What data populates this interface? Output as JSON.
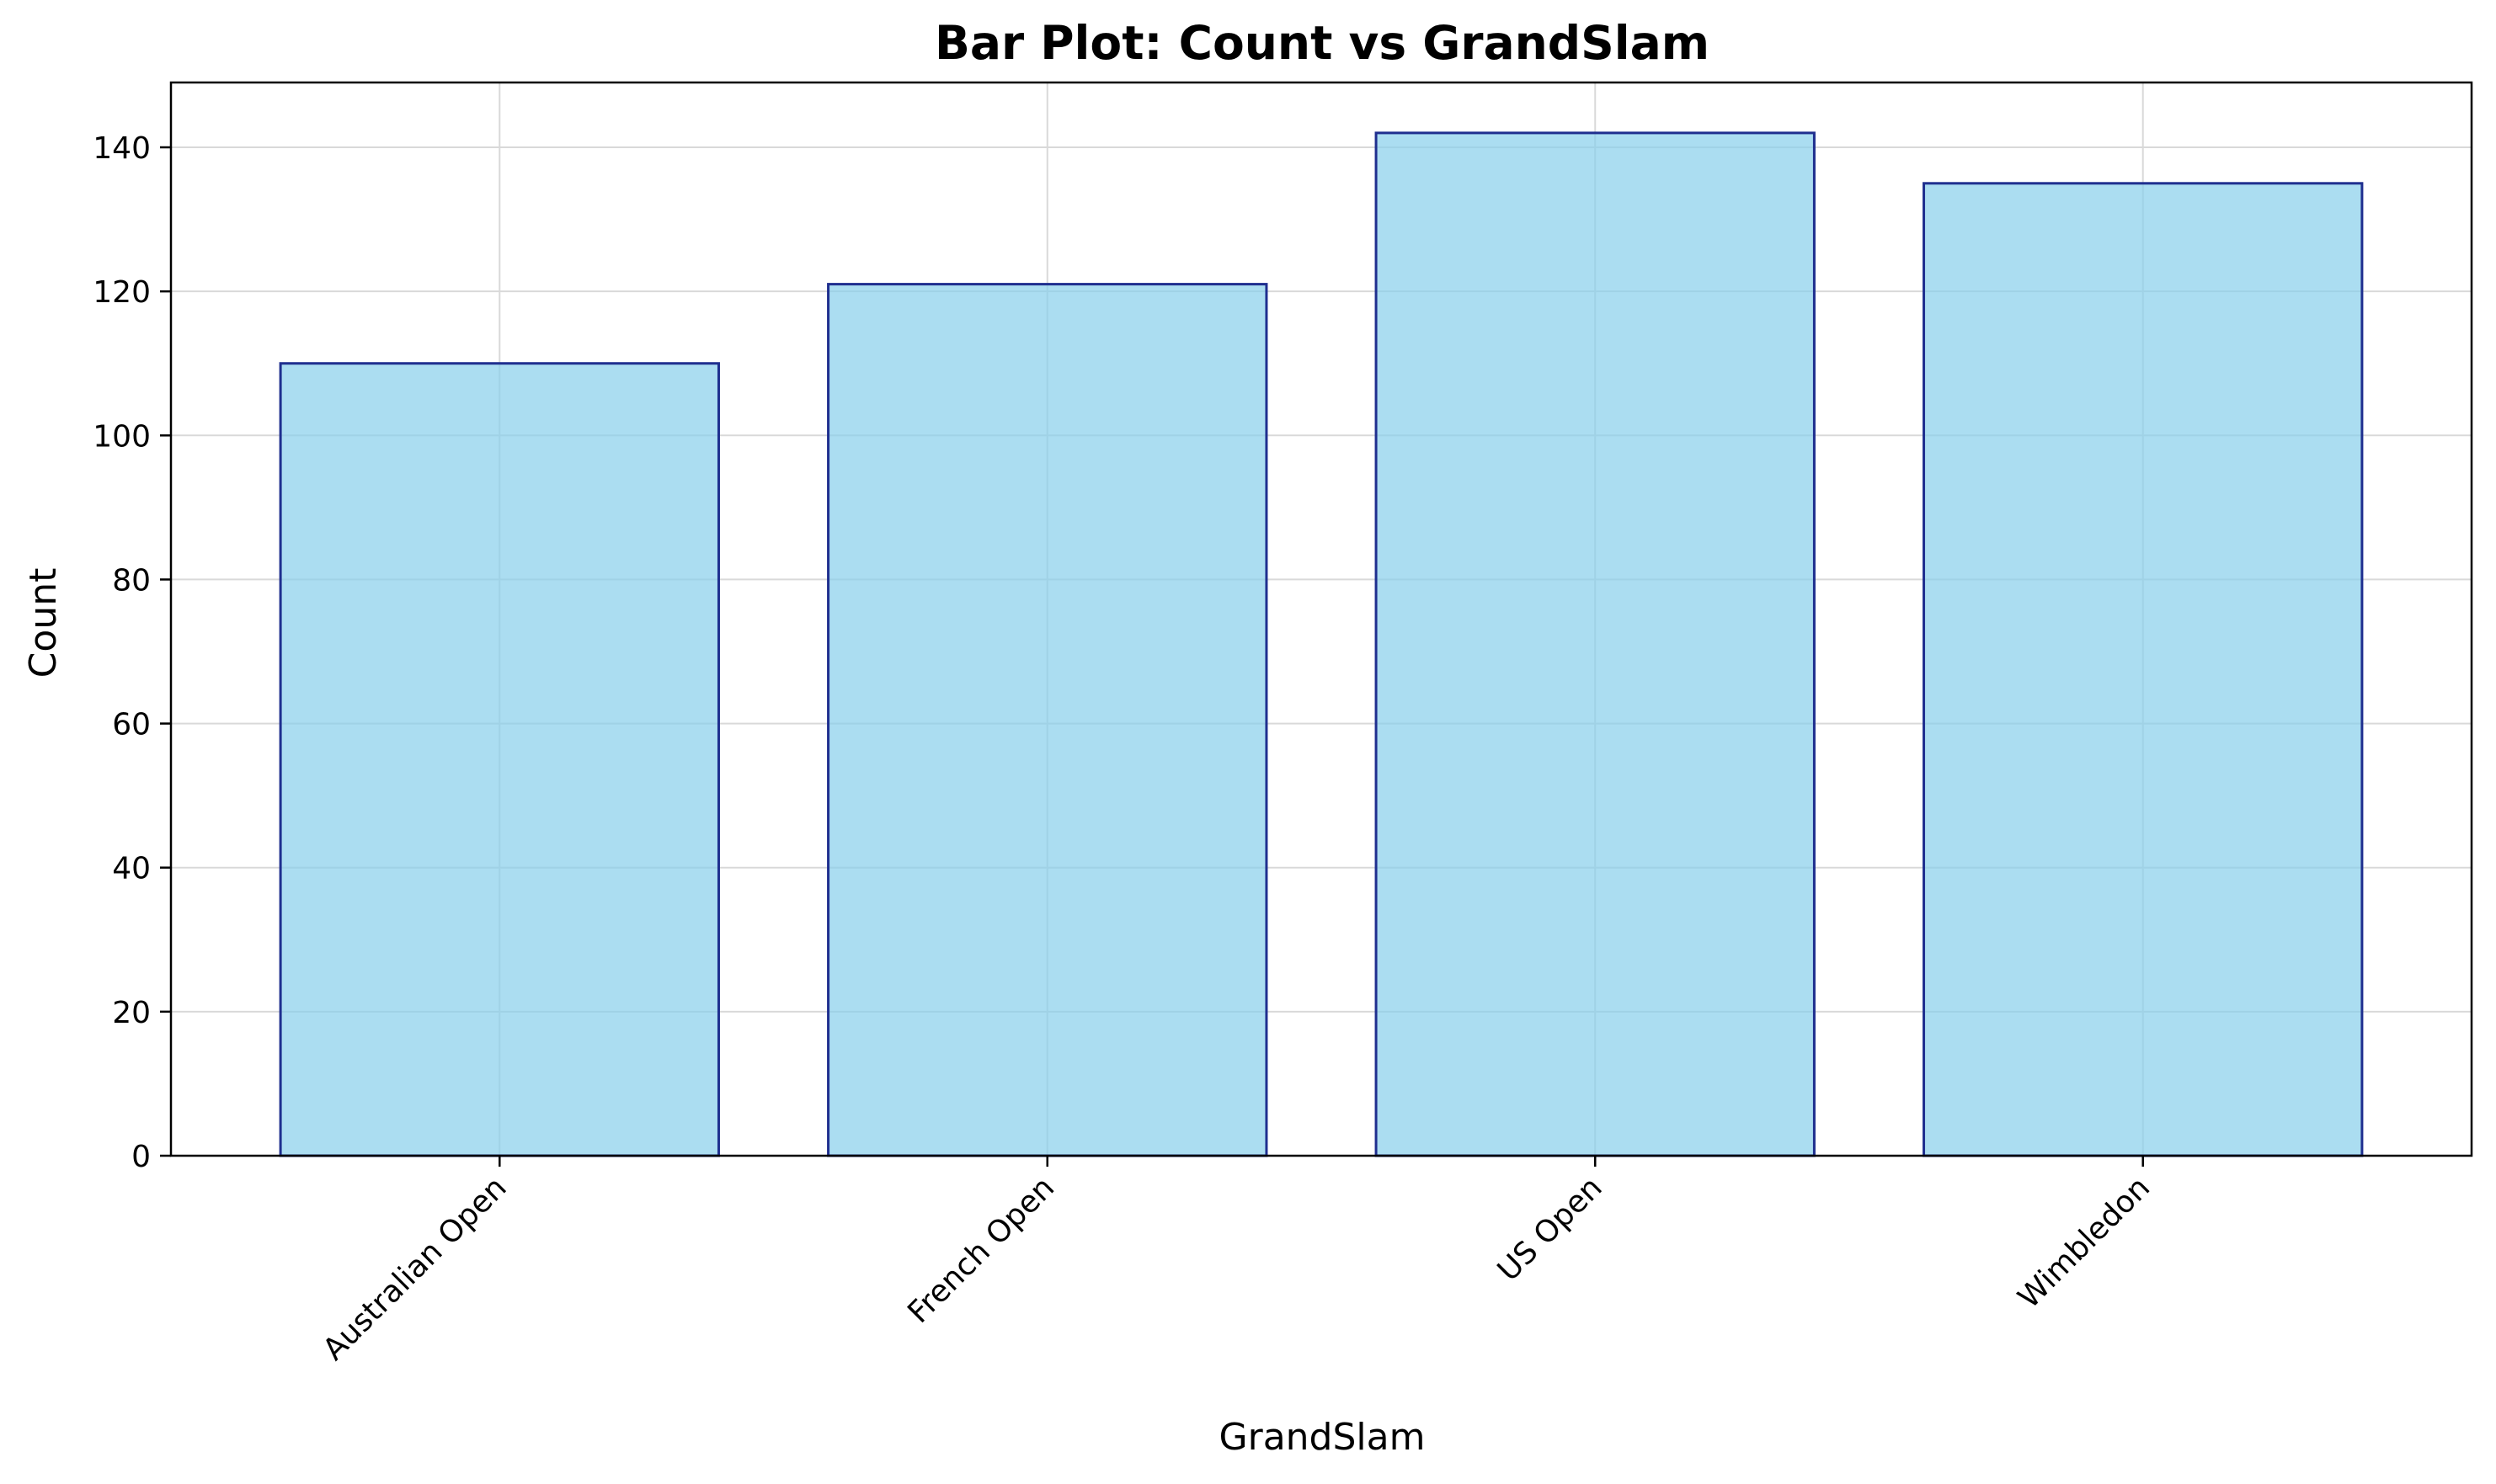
{
  "chart_data": {
    "type": "bar",
    "title": "Bar Plot: Count vs GrandSlam",
    "xlabel": "GrandSlam",
    "ylabel": "Count",
    "categories": [
      "Australian Open",
      "French Open",
      "US Open",
      "Wimbledon"
    ],
    "values": [
      110,
      121,
      142,
      135
    ],
    "ylim": [
      0,
      149
    ],
    "yticks": [
      0,
      20,
      40,
      60,
      80,
      100,
      120,
      140
    ],
    "grid": true,
    "legend": "none",
    "x_tick_rotation": 45,
    "colors": {
      "bar_fill": "#87ceeb",
      "bar_fill_opacity": 0.7,
      "bar_edge": "#1f2f8f",
      "grid": "#d9d9d9",
      "axis": "#000000"
    }
  }
}
